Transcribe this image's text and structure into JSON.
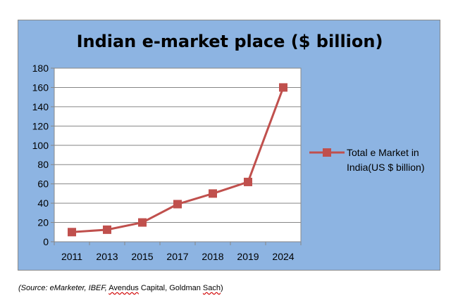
{
  "chart_data": {
    "type": "line",
    "title": "Indian e-market place ($ billion)",
    "xlabel": "",
    "ylabel": "",
    "categories": [
      "2011",
      "2013",
      "2015",
      "2017",
      "2018",
      "2019",
      "2024"
    ],
    "series": [
      {
        "name": "Total e Market in India(US $ billion)",
        "values": [
          10,
          12.5,
          20,
          39,
          50,
          62,
          160
        ],
        "color": "#c0504d"
      }
    ],
    "ylim": [
      0,
      180
    ],
    "yticks": [
      0,
      20,
      40,
      60,
      80,
      100,
      120,
      140,
      160,
      180
    ],
    "grid": true,
    "legend": "right",
    "legend_lines": [
      "Total e Market in",
      "India(US $ billion)"
    ]
  },
  "source": {
    "prefix": "(Source: ",
    "part1": "eMarketer, IBEF,",
    "part2": "Avendus",
    "part3": " Capital, Goldman ",
    "part4": "Sach",
    "suffix": ")"
  },
  "colors": {
    "background": "#8db4e2",
    "plot_area": "#ffffff",
    "series": "#c0504d"
  }
}
